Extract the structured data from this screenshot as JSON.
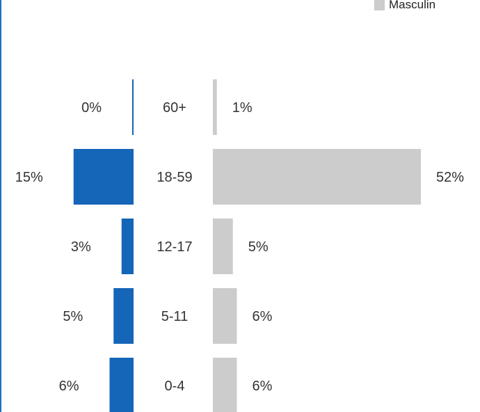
{
  "chart_data": {
    "type": "bar",
    "orientation": "horizontal",
    "layout": "population-pyramid",
    "categories": [
      "60+",
      "18-59",
      "12-17",
      "5-11",
      "0-4"
    ],
    "series": [
      {
        "name": "",
        "color": "#1565b8",
        "values": [
          0,
          15,
          3,
          5,
          6
        ],
        "labels": [
          "0%",
          "15%",
          "3%",
          "5%",
          "6%"
        ]
      },
      {
        "name": "Masculin",
        "color": "#cccccc",
        "values": [
          1,
          52,
          5,
          6,
          6
        ],
        "labels": [
          "1%",
          "52%",
          "5%",
          "6%",
          "6%"
        ]
      }
    ],
    "unit": "%",
    "legend": {
      "position": "top-right",
      "entries": [
        "Masculin"
      ]
    },
    "grid": false
  }
}
